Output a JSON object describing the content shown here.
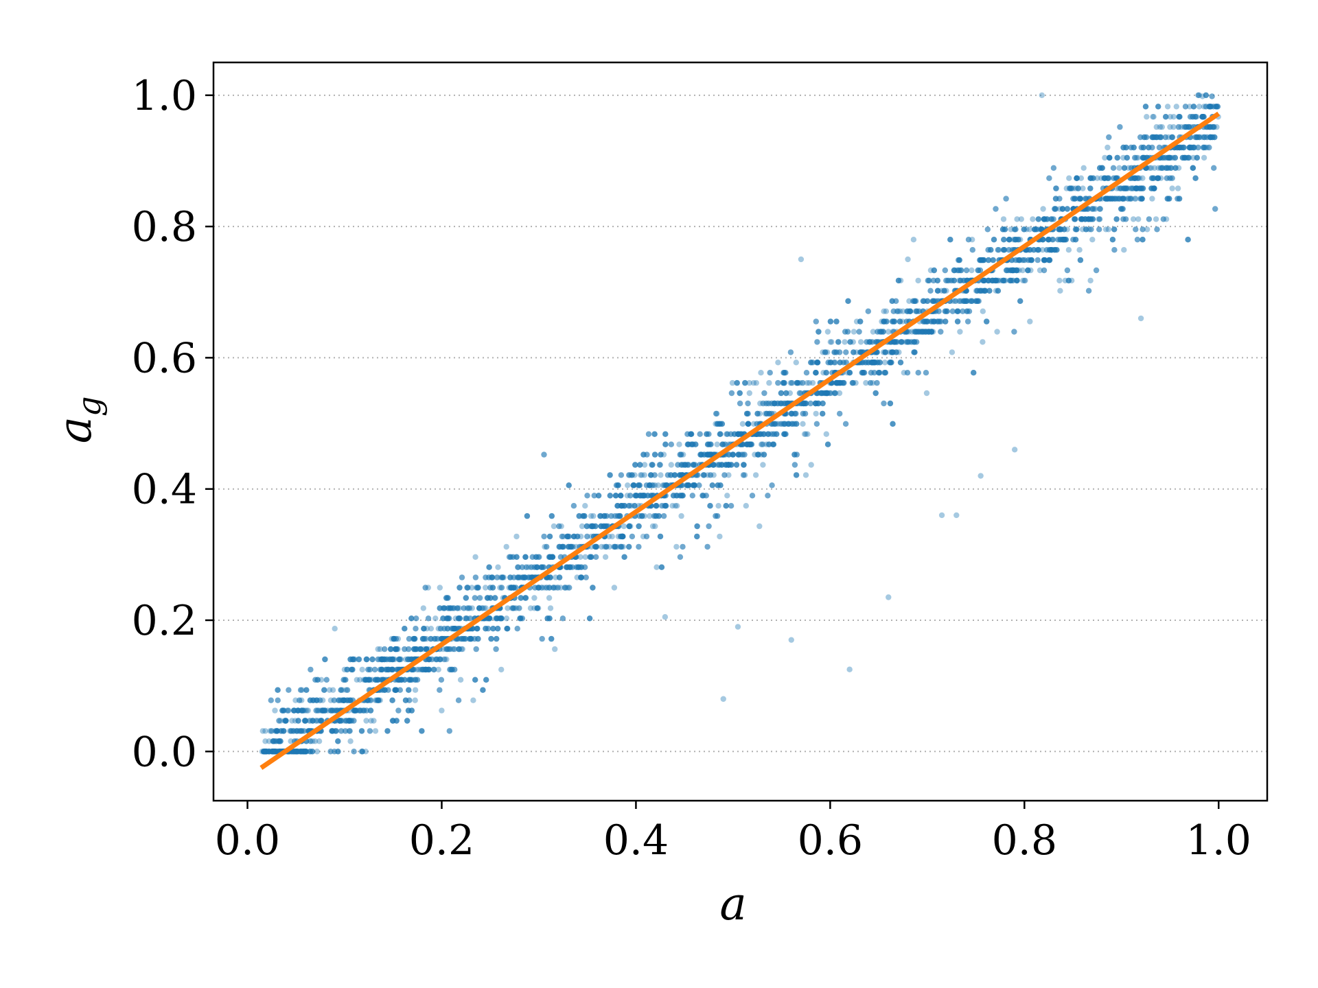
{
  "chart_data": {
    "type": "scatter",
    "title": "",
    "xlabel": "a",
    "ylabel": "a",
    "ylabel_subscript": "g",
    "xlim": [
      -0.035,
      1.05
    ],
    "ylim": [
      -0.075,
      1.05
    ],
    "x_ticks": [
      0.0,
      0.2,
      0.4,
      0.6,
      0.8,
      1.0
    ],
    "x_tick_labels": [
      "0.0",
      "0.2",
      "0.4",
      "0.6",
      "0.8",
      "1.0"
    ],
    "y_ticks": [
      0.0,
      0.2,
      0.4,
      0.6,
      0.8,
      1.0
    ],
    "y_tick_labels": [
      "0.0",
      "0.2",
      "0.4",
      "0.6",
      "0.8",
      "1.0"
    ],
    "grid": {
      "y": true,
      "x": false,
      "style": "dotted"
    },
    "series": [
      {
        "kind": "scatter",
        "color": "#1f77b4",
        "x_range": [
          0.014,
          1.0
        ],
        "y_levels_step": 0.0156,
        "band_center_line": {
          "slope": 0.99,
          "intercept": -0.035
        },
        "band_spread": 0.085,
        "outliers": [
          [
            0.49,
            0.08
          ],
          [
            0.62,
            0.125
          ],
          [
            0.56,
            0.17
          ],
          [
            0.66,
            0.235
          ],
          [
            0.505,
            0.19
          ],
          [
            0.92,
            0.66
          ],
          [
            0.43,
            0.205
          ],
          [
            0.715,
            0.36
          ],
          [
            0.73,
            0.36
          ],
          [
            0.755,
            0.42
          ],
          [
            0.79,
            0.46
          ],
          [
            0.57,
            0.75
          ],
          [
            0.98,
            1.0
          ],
          [
            0.818,
            1.0
          ],
          [
            0.68,
            0.75
          ]
        ]
      },
      {
        "kind": "line",
        "color": "#ff7f0e",
        "x": [
          0.014,
          1.0
        ],
        "y": [
          -0.025,
          0.972
        ]
      }
    ]
  }
}
